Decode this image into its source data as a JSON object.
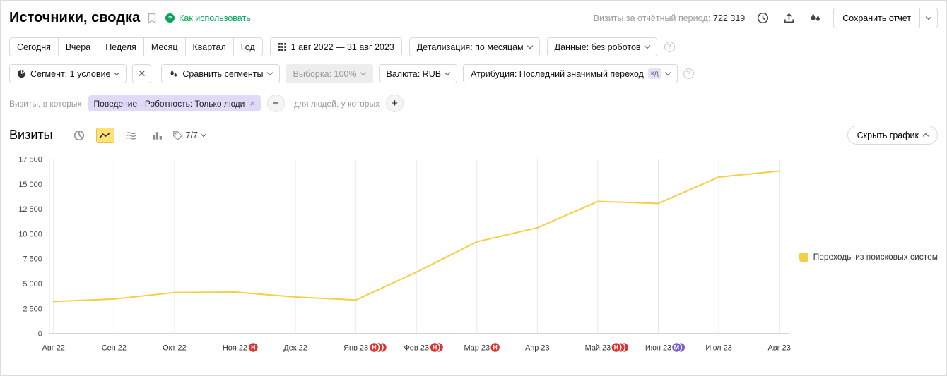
{
  "header": {
    "title": "Источники, сводка",
    "help_link": "Как использовать",
    "visits_label": "Визиты за отчётный период:",
    "visits_value": "722 319",
    "save_button": "Сохранить отчет"
  },
  "toolbar": {
    "presets": [
      "Сегодня",
      "Вчера",
      "Неделя",
      "Месяц",
      "Квартал",
      "Год"
    ],
    "date_range": "1 авг 2022 — 31 авг 2023",
    "detalization": "Детализация: по месяцам",
    "data_mode": "Данные: без роботов"
  },
  "segments": {
    "segment": "Сегмент: 1 условие",
    "compare": "Сравнить сегменты",
    "sampling": "Выборка: 100%",
    "currency": "Валюта: RUB",
    "attribution": "Атрибуция: Последний значимый переход",
    "attribution_badge": "кд"
  },
  "filter_row": {
    "visits_in_which": "Визиты, в которых",
    "pill": "Поведение · Роботность: Только люди",
    "for_people": "для людей, у которых"
  },
  "chart_header": {
    "title": "Визиты",
    "metrics_count": "7/7",
    "hide_chart": "Скрыть график"
  },
  "chart_data": {
    "type": "line",
    "title": "Визиты",
    "categories": [
      "Авг 22",
      "Сен 22",
      "Окт 22",
      "Ноя 22",
      "Дек 22",
      "Янв 23",
      "Фев 23",
      "Мар 23",
      "Апр 23",
      "Май 23",
      "Июн 23",
      "Июл 23",
      "Авг 23"
    ],
    "series": [
      {
        "name": "Переходы из поисковых систем",
        "color": "#f5ce45",
        "values": [
          3200,
          3450,
          4100,
          4150,
          3650,
          3350,
          6150,
          9200,
          10600,
          13250,
          13050,
          15700,
          16300
        ]
      }
    ],
    "ylim": [
      0,
      17500
    ],
    "yticks": [
      0,
      2500,
      5000,
      7500,
      10000,
      12500,
      15000,
      17500
    ],
    "grid": "vertical",
    "legend_position": "right",
    "annotations": [
      {
        "category": "Ноя 22",
        "letter": "Н",
        "color": "#e0312e",
        "count": 1
      },
      {
        "category": "Янв 23",
        "letter": "Н",
        "color": "#e0312e",
        "count": 3
      },
      {
        "category": "Фев 23",
        "letter": "Н",
        "color": "#e0312e",
        "count": 2
      },
      {
        "category": "Мар 23",
        "letter": "Н",
        "color": "#e0312e",
        "count": 1
      },
      {
        "category": "Май 23",
        "letter": "Н",
        "color": "#e0312e",
        "count": 3
      },
      {
        "category": "Июн 23",
        "letter": "М",
        "color": "#7b5cd6",
        "count": 2
      }
    ]
  }
}
